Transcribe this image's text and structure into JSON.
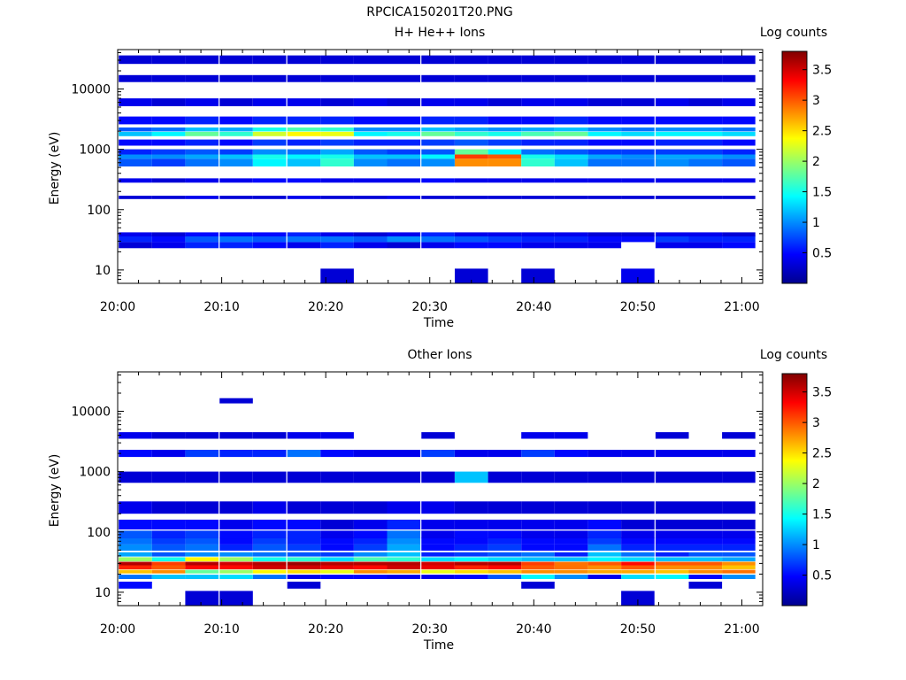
{
  "figure_title": "RPCICA150201T20.PNG",
  "colors": {
    "scale": [
      "#00008f",
      "#0000ff",
      "#00a0ff",
      "#00ffff",
      "#80ff80",
      "#ffff00",
      "#ff8000",
      "#ff0000",
      "#800000"
    ]
  },
  "chart_data": [
    {
      "type": "heatmap",
      "title": "H+ He++ Ions",
      "xlabel": "Time",
      "ylabel": "Energy (eV)",
      "y_scale": "log",
      "ylim": [
        6,
        45000
      ],
      "xlim": [
        "20:00",
        "21:02"
      ],
      "x_ticks": [
        "20:00",
        "20:10",
        "20:20",
        "20:30",
        "20:40",
        "20:50",
        "21:00"
      ],
      "y_ticks": [
        "10",
        "100",
        "1000",
        "10000"
      ],
      "colorbar": {
        "label": "Log counts",
        "range": [
          0,
          3.8
        ],
        "ticks": [
          "0.5",
          "1",
          "1.5",
          "2",
          "2.5",
          "3",
          "3.5"
        ]
      },
      "band_centers_eV": [
        12,
        26,
        33,
        40,
        160,
        300,
        600,
        760,
        900,
        1300,
        1800,
        2100,
        3000,
        6000,
        15000,
        30000
      ],
      "band_heights_eV": [
        8,
        26,
        34,
        40,
        160,
        310,
        620,
        780,
        920,
        1350,
        1850,
        2200,
        3200,
        6200,
        15500,
        32000
      ],
      "band_tops_eV": [
        10.5,
        29,
        37,
        42,
        170,
        330,
        700,
        820,
        1000,
        1450,
        1950,
        2300,
        3500,
        7000,
        17000,
        36000
      ],
      "band_bottoms_eV": [
        6,
        23,
        29,
        36,
        150,
        280,
        520,
        700,
        820,
        1150,
        1650,
        1980,
        2600,
        5200,
        13000,
        26000
      ],
      "time_bins_min": [
        1.7,
        4.9,
        8.1,
        11.4,
        14.6,
        17.9,
        21.1,
        24.3,
        27.5,
        30.8,
        34.0,
        37.2,
        40.4,
        43.6,
        46.8,
        50.0,
        53.3,
        56.5,
        59.7
      ],
      "log_counts": [
        [
          0,
          0,
          0,
          0,
          0,
          0,
          0.3,
          0,
          0,
          0,
          0.3,
          0,
          0.3,
          0,
          0,
          0.4,
          0,
          0,
          0
        ],
        [
          0.3,
          0.4,
          0.6,
          0.6,
          0.5,
          0.4,
          0.6,
          0.4,
          0.3,
          0.4,
          0.5,
          0.5,
          0.4,
          0.4,
          0.4,
          0,
          0.4,
          0.4,
          0.5
        ],
        [
          0.6,
          0.5,
          0.8,
          0.9,
          0.8,
          0.9,
          0.9,
          0.8,
          1.0,
          0.9,
          0.8,
          0.7,
          0.6,
          0.6,
          0.5,
          0.5,
          0.7,
          0.6,
          0.6
        ],
        [
          0.4,
          0.3,
          0.5,
          0.5,
          0.5,
          0.6,
          0.4,
          0.3,
          0.4,
          0.6,
          0.4,
          0.4,
          0.4,
          0.4,
          0.3,
          0.3,
          0.4,
          0.4,
          0.3
        ],
        [
          0.3,
          0.3,
          0.4,
          0.3,
          0.3,
          0.4,
          0.3,
          0.3,
          0.4,
          0.3,
          0.3,
          0.3,
          0.3,
          0.3,
          0.3,
          0.3,
          0.3,
          0.3,
          0.3
        ],
        [
          0.4,
          0.3,
          0.4,
          0.4,
          0.5,
          0.5,
          0.4,
          0.4,
          0.4,
          0.5,
          0.4,
          0.4,
          0.4,
          0.4,
          0.4,
          0.4,
          0.4,
          0.4,
          0.4
        ],
        [
          0.8,
          0.7,
          0.9,
          1.0,
          1.4,
          1.2,
          1.6,
          1.0,
          0.9,
          1.0,
          2.8,
          2.8,
          1.6,
          1.2,
          0.9,
          0.9,
          1.0,
          0.9,
          0.8
        ],
        [
          1.0,
          1.0,
          1.1,
          1.2,
          1.5,
          1.4,
          1.5,
          1.2,
          1.2,
          1.4,
          3.1,
          3.0,
          1.5,
          1.3,
          1.1,
          1.0,
          1.1,
          1.1,
          1.0
        ],
        [
          0.6,
          0.7,
          0.8,
          0.7,
          1.0,
          0.9,
          1.1,
          0.8,
          0.7,
          0.8,
          1.8,
          1.4,
          0.9,
          0.8,
          0.7,
          0.7,
          0.7,
          0.7,
          0.6
        ],
        [
          0.5,
          0.5,
          0.6,
          0.5,
          0.7,
          0.6,
          0.7,
          0.6,
          0.6,
          0.7,
          0.8,
          0.7,
          0.6,
          0.6,
          0.5,
          0.5,
          0.6,
          0.6,
          0.5
        ],
        [
          1.2,
          1.4,
          1.8,
          1.6,
          2.2,
          2.4,
          2.3,
          1.4,
          1.5,
          1.8,
          1.6,
          1.5,
          1.7,
          1.8,
          1.4,
          1.3,
          1.4,
          1.4,
          1.3
        ],
        [
          0.8,
          0.9,
          1.2,
          1.1,
          1.5,
          1.7,
          1.6,
          1.0,
          1.0,
          1.2,
          1.1,
          1.0,
          1.1,
          1.2,
          1.0,
          0.9,
          1.0,
          1.0,
          0.9
        ],
        [
          0.5,
          0.5,
          0.6,
          0.5,
          0.6,
          0.6,
          0.6,
          0.5,
          0.5,
          0.6,
          0.6,
          0.5,
          0.5,
          0.6,
          0.5,
          0.5,
          0.5,
          0.5,
          0.5
        ],
        [
          0.4,
          0.3,
          0.4,
          0.3,
          0.4,
          0.4,
          0.3,
          0.4,
          0.3,
          0.4,
          0.4,
          0.3,
          0.4,
          0.4,
          0.3,
          0.3,
          0.4,
          0.3,
          0.4
        ],
        [
          0.3,
          0.3,
          0.3,
          0.3,
          0.3,
          0.3,
          0.3,
          0.3,
          0.3,
          0.3,
          0.3,
          0.3,
          0.3,
          0.3,
          0.3,
          0.3,
          0.3,
          0.3,
          0.3
        ],
        [
          0.3,
          0.3,
          0.3,
          0.3,
          0.3,
          0.3,
          0.3,
          0.3,
          0.3,
          0.3,
          0.3,
          0.3,
          0.3,
          0.3,
          0.3,
          0.3,
          0.3,
          0.3,
          0.3
        ]
      ]
    },
    {
      "type": "heatmap",
      "title": "Other Ions",
      "xlabel": "Time",
      "ylabel": "Energy (eV)",
      "y_scale": "log",
      "ylim": [
        6,
        45000
      ],
      "xlim": [
        "20:00",
        "21:02"
      ],
      "x_ticks": [
        "20:00",
        "20:10",
        "20:20",
        "20:30",
        "20:40",
        "20:50",
        "21:00"
      ],
      "y_ticks": [
        "10",
        "100",
        "1000",
        "10000"
      ],
      "colorbar": {
        "label": "Log counts",
        "range": [
          0,
          3.8
        ],
        "ticks": [
          "0.5",
          "1",
          "1.5",
          "2",
          "2.5",
          "3",
          "3.5"
        ]
      },
      "band_centers_eV": [
        9,
        13,
        18,
        22,
        26,
        30,
        35,
        42,
        55,
        70,
        90,
        130,
        250,
        800,
        2000,
        4000,
        15000
      ],
      "band_tops_eV": [
        10.5,
        15,
        19.5,
        23.5,
        28,
        32,
        38,
        46,
        62,
        80,
        105,
        160,
        320,
        1000,
        2300,
        4500,
        16500
      ],
      "band_bottoms_eV": [
        6,
        11.5,
        16.5,
        20.5,
        24,
        28,
        32.5,
        39,
        49,
        62,
        78,
        110,
        200,
        650,
        1750,
        3500,
        13500
      ],
      "time_bins_min": [
        1.7,
        4.9,
        8.1,
        11.4,
        14.6,
        17.9,
        21.1,
        24.3,
        27.5,
        30.8,
        34.0,
        37.2,
        40.4,
        43.6,
        46.8,
        50.0,
        53.3,
        56.5,
        59.7
      ],
      "log_counts": [
        [
          0,
          0,
          0.3,
          0.3,
          0,
          0,
          0,
          0,
          0,
          0,
          0,
          0,
          0,
          0,
          0,
          0.3,
          0,
          0,
          0
        ],
        [
          0.5,
          0,
          0,
          0,
          0,
          0.3,
          0,
          0,
          0,
          0,
          0,
          0,
          0.3,
          0,
          0,
          0,
          0,
          0.3,
          0
        ],
        [
          0.9,
          1.2,
          1.2,
          1.3,
          0.9,
          0.4,
          0.5,
          0.5,
          0.4,
          0.4,
          0.5,
          0.8,
          1.4,
          1.0,
          0.4,
          1.3,
          1.4,
          0.5,
          1.0
        ],
        [
          2.6,
          2.8,
          1.8,
          2.0,
          2.4,
          2.5,
          2.3,
          2.8,
          2.7,
          2.3,
          2.5,
          2.6,
          2.8,
          2.8,
          2.7,
          2.7,
          2.6,
          2.8,
          2.9
        ],
        [
          3.2,
          3.0,
          3.3,
          3.3,
          3.5,
          3.5,
          3.4,
          3.3,
          3.5,
          3.4,
          3.2,
          3.3,
          3.0,
          2.9,
          2.8,
          3.0,
          2.8,
          2.8,
          2.6
        ],
        [
          3.6,
          3.1,
          3.6,
          3.5,
          3.6,
          3.7,
          3.6,
          3.6,
          3.6,
          3.5,
          3.6,
          3.6,
          3.1,
          2.9,
          3.0,
          3.3,
          3.0,
          3.0,
          2.8
        ],
        [
          2.0,
          1.5,
          2.4,
          2.0,
          1.5,
          1.6,
          1.3,
          1.7,
          1.6,
          1.3,
          1.4,
          1.3,
          1.2,
          1.2,
          1.4,
          1.3,
          1.2,
          1.2,
          1.1
        ],
        [
          1.1,
          0.8,
          1.0,
          1.0,
          0.9,
          0.8,
          0.7,
          1.0,
          1.2,
          0.6,
          0.7,
          0.8,
          0.9,
          0.6,
          1.2,
          0.9,
          0.6,
          0.8,
          0.8
        ],
        [
          1.0,
          0.8,
          0.9,
          0.6,
          0.8,
          0.7,
          0.5,
          0.7,
          1.1,
          0.5,
          0.6,
          0.7,
          0.5,
          0.5,
          0.9,
          0.6,
          0.6,
          0.6,
          0.6
        ],
        [
          0.9,
          0.7,
          0.8,
          0.5,
          0.7,
          0.6,
          0.5,
          0.6,
          1.0,
          0.5,
          0.5,
          0.6,
          0.5,
          0.5,
          0.7,
          0.5,
          0.5,
          0.5,
          0.5
        ],
        [
          0.8,
          0.6,
          0.7,
          0.5,
          0.6,
          0.6,
          0.4,
          0.5,
          0.9,
          0.4,
          0.5,
          0.5,
          0.4,
          0.4,
          0.6,
          0.4,
          0.4,
          0.4,
          0.4
        ],
        [
          0.5,
          0.5,
          0.5,
          0.4,
          0.5,
          0.5,
          0.3,
          0.4,
          0.6,
          0.4,
          0.4,
          0.4,
          0.4,
          0.4,
          0.5,
          0.3,
          0.3,
          0.3,
          0.3
        ],
        [
          0.4,
          0.3,
          0.3,
          0.3,
          0.4,
          0.3,
          0.3,
          0.3,
          0.4,
          0.4,
          0.3,
          0.3,
          0.3,
          0.3,
          0.3,
          0.3,
          0.3,
          0.3,
          0.3
        ],
        [
          0.3,
          0.3,
          0.3,
          0.3,
          0.3,
          0.3,
          0.3,
          0.3,
          0.3,
          0.3,
          1.2,
          0.3,
          0.3,
          0.3,
          0.3,
          0.3,
          0.3,
          0.3,
          0.3
        ],
        [
          0.5,
          0.4,
          0.7,
          0.6,
          0.6,
          0.9,
          0.5,
          0.4,
          0.4,
          0.7,
          0.4,
          0.4,
          0.7,
          0.5,
          0.4,
          0.4,
          0.4,
          0.4,
          0.4
        ],
        [
          0.4,
          0.3,
          0.3,
          0.3,
          0.3,
          0.4,
          0.4,
          0,
          0,
          0.3,
          0,
          0,
          0.4,
          0.4,
          0,
          0,
          0.3,
          0,
          0.3
        ],
        [
          0,
          0,
          0,
          0.3,
          0,
          0,
          0,
          0,
          0,
          0,
          0,
          0,
          0,
          0,
          0,
          0,
          0,
          0,
          0
        ]
      ]
    }
  ]
}
